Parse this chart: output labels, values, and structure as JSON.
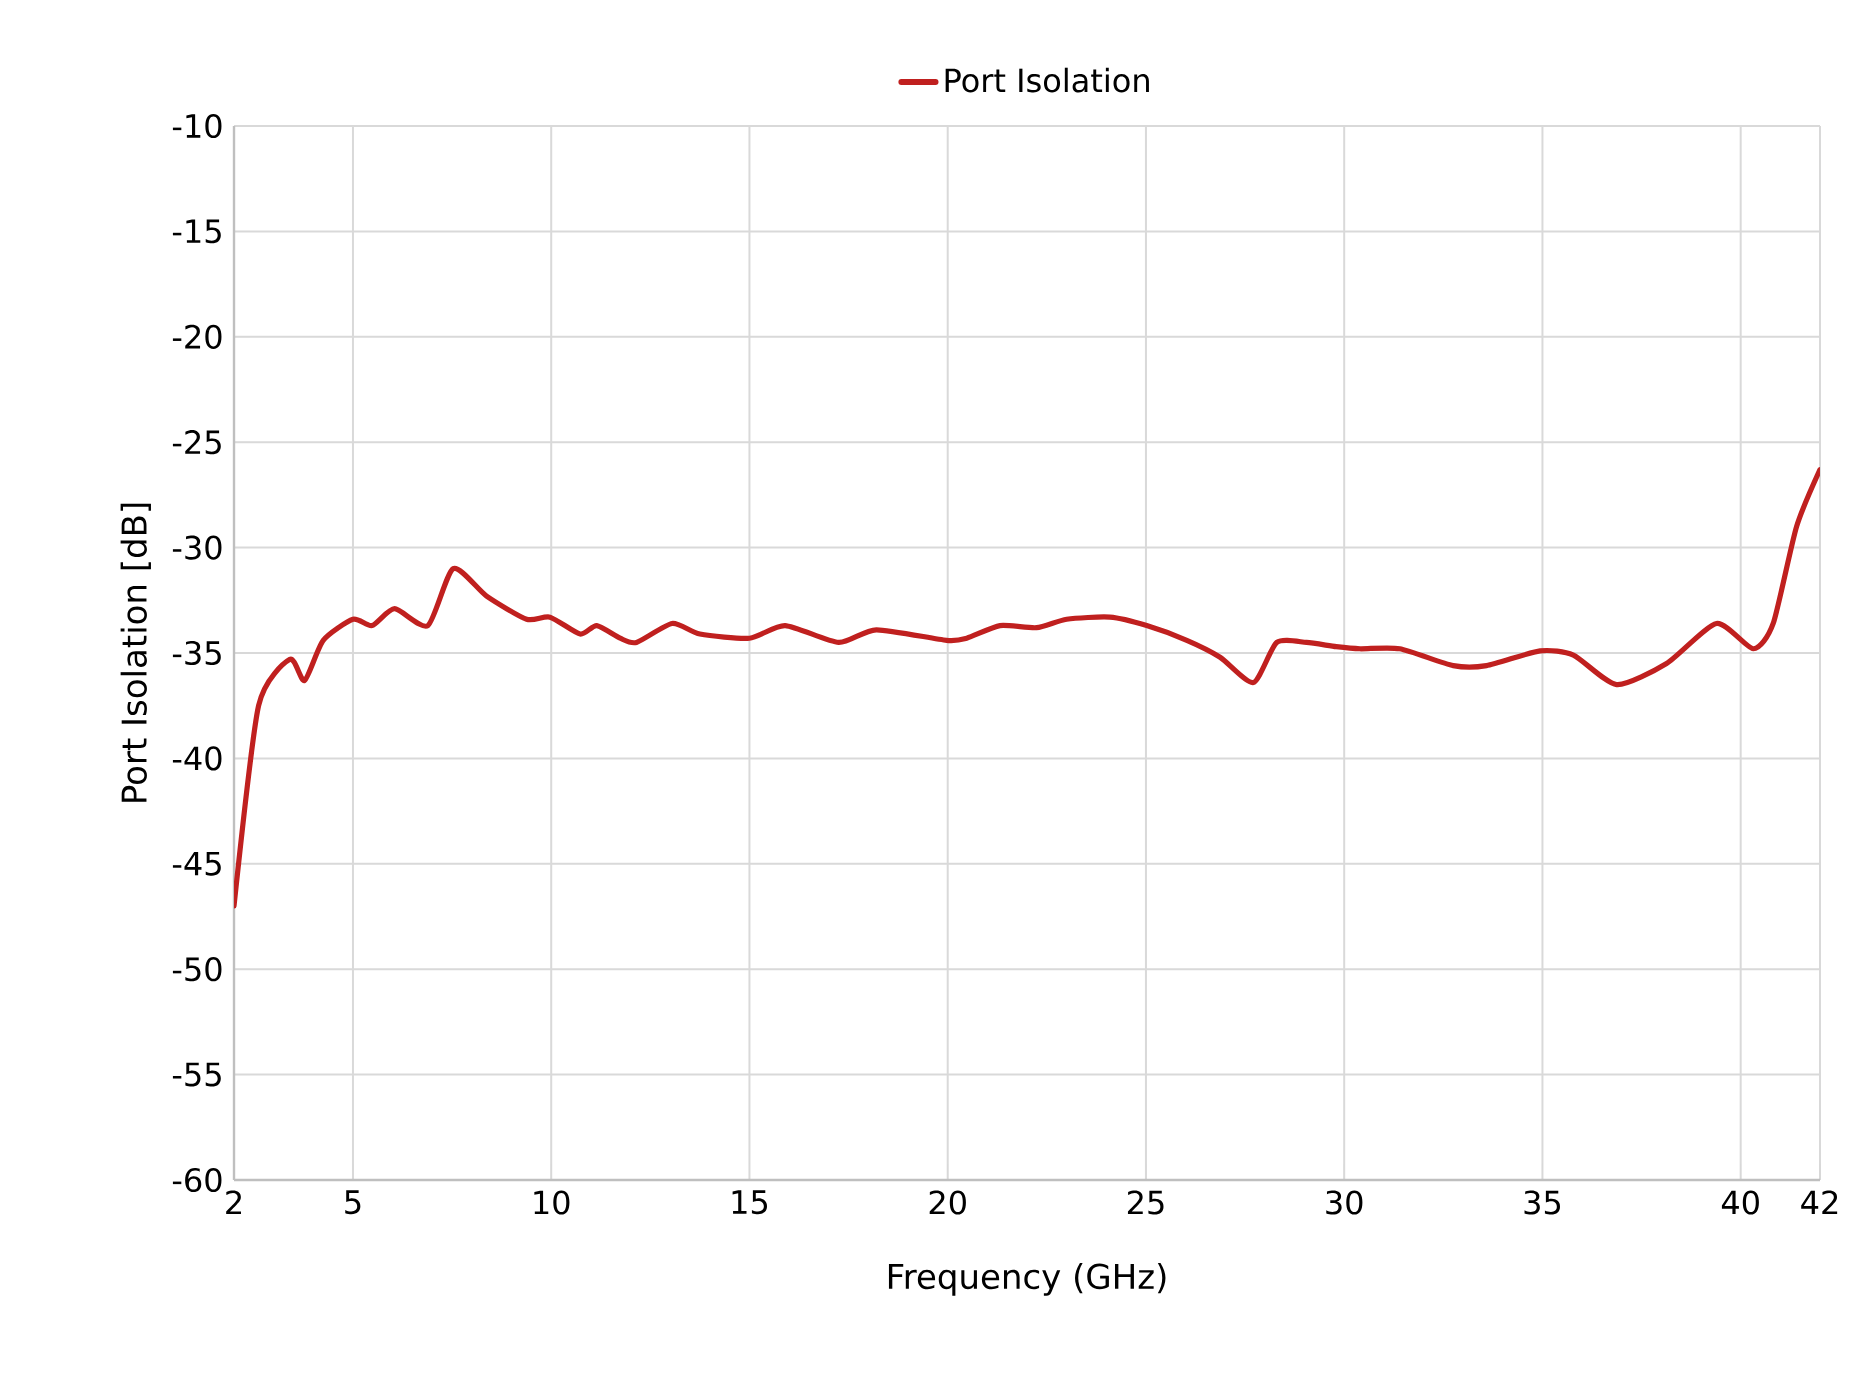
{
  "chart_data": {
    "type": "line",
    "xlabel": "Frequency (GHz)",
    "ylabel": "Port Isolation [dB]",
    "x": [
      2,
      2.62,
      3.41,
      3.78,
      4.25,
      5.0,
      5.48,
      6.05,
      6.89,
      7.53,
      8.37,
      9.38,
      9.97,
      10.73,
      11.15,
      11.74,
      12.15,
      13.05,
      13.75,
      15.0,
      15.9,
      17.25,
      18.2,
      19.97,
      20.48,
      21.32,
      22.24,
      23.0,
      24.09,
      25.02,
      26.03,
      26.87,
      27.71,
      28.3,
      29.05,
      29.8,
      30.4,
      31.4,
      32.75,
      33.59,
      34.94,
      35.78,
      36.87,
      38.13,
      39.39,
      40.32,
      40.82,
      41.41,
      42
    ],
    "series": [
      {
        "name": "Port Isolation",
        "color": "#c0201f",
        "values": [
          -47,
          -37.5,
          -35.3,
          -36.3,
          -34.4,
          -33.4,
          -33.7,
          -32.9,
          -33.7,
          -31.0,
          -32.3,
          -33.4,
          -33.3,
          -34.1,
          -33.7,
          -34.3,
          -34.5,
          -33.6,
          -34.1,
          -34.3,
          -33.7,
          -34.5,
          -33.9,
          -34.4,
          -34.3,
          -33.7,
          -33.8,
          -33.4,
          -33.3,
          -33.7,
          -34.4,
          -35.2,
          -36.4,
          -34.5,
          -34.5,
          -34.7,
          -34.8,
          -34.8,
          -35.6,
          -35.6,
          -34.9,
          -35.1,
          -36.5,
          -35.5,
          -33.6,
          -34.8,
          -33.6,
          -29.0,
          -26.3
        ]
      }
    ],
    "xlim": [
      2,
      42
    ],
    "ylim": [
      -60,
      -10
    ],
    "xticks": [
      2,
      5,
      10,
      15,
      20,
      25,
      30,
      35,
      40,
      42
    ],
    "yticks": [
      -60,
      -55,
      -50,
      -45,
      -40,
      -35,
      -30,
      -25,
      -20,
      -15,
      -10
    ],
    "grid": true,
    "legend": "top",
    "marker": "none",
    "line_style": "solid"
  }
}
